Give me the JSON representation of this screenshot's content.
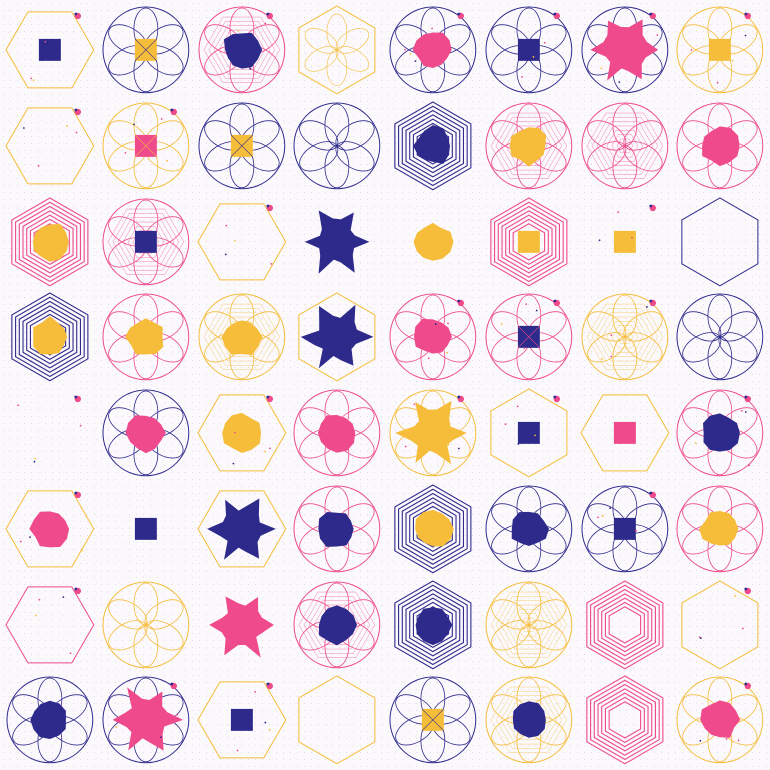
{
  "colors": {
    "navy": "#2e2a8c",
    "pink": "#ee4a8c",
    "yellow": "#f5bd3a",
    "background": "#fbf9fc"
  },
  "tiles": [
    {
      "outline": "hexagon",
      "outline_color": "yellow",
      "center": "square",
      "center_color": "navy",
      "dots": true
    },
    {
      "outline": "flower",
      "outline_color": "navy",
      "center": "square",
      "center_color": "yellow",
      "dots": false
    },
    {
      "outline": "flower-dense",
      "outline_color": "pink",
      "center": "blob",
      "center_color": "navy",
      "dots": true
    },
    {
      "outline": "hexagon-petals",
      "outline_color": "yellow",
      "center": "none",
      "center_color": "",
      "dots": false
    },
    {
      "outline": "flower",
      "outline_color": "navy",
      "center": "blob",
      "center_color": "pink",
      "dots": true
    },
    {
      "outline": "flower",
      "outline_color": "navy",
      "center": "square",
      "center_color": "navy",
      "dots": true
    },
    {
      "outline": "flower",
      "outline_color": "navy",
      "center": "splash",
      "center_color": "pink",
      "dots": true
    },
    {
      "outline": "flower",
      "outline_color": "yellow",
      "center": "square",
      "center_color": "yellow",
      "dots": true
    },
    {
      "outline": "hexagon",
      "outline_color": "yellow",
      "center": "none",
      "center_color": "",
      "dots": true
    },
    {
      "outline": "flower",
      "outline_color": "yellow",
      "center": "square",
      "center_color": "pink",
      "dots": true
    },
    {
      "outline": "flower",
      "outline_color": "navy",
      "center": "square",
      "center_color": "yellow",
      "dots": false
    },
    {
      "outline": "flower",
      "outline_color": "navy",
      "center": "none",
      "center_color": "",
      "dots": false
    },
    {
      "outline": "hexagon-nested",
      "outline_color": "navy",
      "center": "blob",
      "center_color": "navy",
      "dots": false
    },
    {
      "outline": "flower-dense",
      "outline_color": "pink",
      "center": "blob",
      "center_color": "yellow",
      "dots": false
    },
    {
      "outline": "flower-dense",
      "outline_color": "pink",
      "center": "none",
      "center_color": "",
      "dots": false
    },
    {
      "outline": "flower",
      "outline_color": "pink",
      "center": "blob",
      "center_color": "pink",
      "dots": false
    },
    {
      "outline": "hexagon-nested",
      "outline_color": "pink",
      "center": "blob",
      "center_color": "yellow",
      "dots": false
    },
    {
      "outline": "flower-dense",
      "outline_color": "pink",
      "center": "square",
      "center_color": "navy",
      "dots": false
    },
    {
      "outline": "hexagon",
      "outline_color": "yellow",
      "center": "none",
      "center_color": "",
      "dots": true
    },
    {
      "outline": "none",
      "outline_color": "navy",
      "center": "splash",
      "center_color": "navy",
      "dots": false
    },
    {
      "outline": "none",
      "outline_color": "yellow",
      "center": "blob",
      "center_color": "yellow",
      "dots": false
    },
    {
      "outline": "hexagon-nested",
      "outline_color": "pink",
      "center": "square",
      "center_color": "yellow",
      "dots": false
    },
    {
      "outline": "none",
      "outline_color": "yellow",
      "center": "square",
      "center_color": "yellow",
      "dots": true
    },
    {
      "outline": "hexagon",
      "outline_color": "navy",
      "center": "none",
      "center_color": "",
      "dots": false
    },
    {
      "outline": "hexagon-nested",
      "outline_color": "navy",
      "center": "blob",
      "center_color": "yellow",
      "dots": false
    },
    {
      "outline": "flower",
      "outline_color": "pink",
      "center": "blob",
      "center_color": "yellow",
      "dots": false
    },
    {
      "outline": "flower-dense",
      "outline_color": "yellow",
      "center": "blob",
      "center_color": "yellow",
      "dots": false
    },
    {
      "outline": "hexagon",
      "outline_color": "yellow",
      "center": "splash",
      "center_color": "navy",
      "dots": false
    },
    {
      "outline": "flower",
      "outline_color": "pink",
      "center": "blob",
      "center_color": "pink",
      "dots": true
    },
    {
      "outline": "flower",
      "outline_color": "pink",
      "center": "square",
      "center_color": "navy",
      "dots": true
    },
    {
      "outline": "flower-dense",
      "outline_color": "yellow",
      "center": "none",
      "center_color": "",
      "dots": true
    },
    {
      "outline": "flower",
      "outline_color": "navy",
      "center": "none",
      "center_color": "",
      "dots": false
    },
    {
      "outline": "none",
      "outline_color": "yellow",
      "center": "none",
      "center_color": "",
      "dots": true
    },
    {
      "outline": "flower",
      "outline_color": "navy",
      "center": "blob",
      "center_color": "pink",
      "dots": false
    },
    {
      "outline": "hexagon",
      "outline_color": "yellow",
      "center": "blob",
      "center_color": "yellow",
      "dots": true
    },
    {
      "outline": "flower",
      "outline_color": "pink",
      "center": "blob",
      "center_color": "pink",
      "dots": false
    },
    {
      "outline": "flower",
      "outline_color": "yellow",
      "center": "splash",
      "center_color": "yellow",
      "dots": true
    },
    {
      "outline": "hexagon",
      "outline_color": "yellow",
      "center": "square",
      "center_color": "navy",
      "dots": true
    },
    {
      "outline": "hexagon",
      "outline_color": "yellow",
      "center": "square",
      "center_color": "pink",
      "dots": false
    },
    {
      "outline": "flower",
      "outline_color": "pink",
      "center": "blob",
      "center_color": "navy",
      "dots": true
    },
    {
      "outline": "hexagon",
      "outline_color": "yellow",
      "center": "blob",
      "center_color": "pink",
      "dots": true
    },
    {
      "outline": "none",
      "outline_color": "navy",
      "center": "square",
      "center_color": "navy",
      "dots": false
    },
    {
      "outline": "hexagon",
      "outline_color": "yellow",
      "center": "splash",
      "center_color": "navy",
      "dots": false
    },
    {
      "outline": "flower",
      "outline_color": "pink",
      "center": "blob",
      "center_color": "navy",
      "dots": false
    },
    {
      "outline": "hexagon-dense",
      "outline_color": "navy",
      "center": "blob",
      "center_color": "yellow",
      "dots": false
    },
    {
      "outline": "flower",
      "outline_color": "navy",
      "center": "blob",
      "center_color": "navy",
      "dots": false
    },
    {
      "outline": "flower",
      "outline_color": "navy",
      "center": "square",
      "center_color": "navy",
      "dots": true
    },
    {
      "outline": "flower",
      "outline_color": "pink",
      "center": "blob",
      "center_color": "yellow",
      "dots": false
    },
    {
      "outline": "hexagon",
      "outline_color": "pink",
      "center": "none",
      "center_color": "",
      "dots": true
    },
    {
      "outline": "flower",
      "outline_color": "yellow",
      "center": "none",
      "center_color": "",
      "dots": false
    },
    {
      "outline": "none",
      "outline_color": "pink",
      "center": "splash",
      "center_color": "pink",
      "dots": false
    },
    {
      "outline": "flower-dense",
      "outline_color": "pink",
      "center": "blob",
      "center_color": "navy",
      "dots": false
    },
    {
      "outline": "hexagon-nested",
      "outline_color": "navy",
      "center": "blob",
      "center_color": "navy",
      "dots": false
    },
    {
      "outline": "flower-dense",
      "outline_color": "yellow",
      "center": "none",
      "center_color": "",
      "dots": false
    },
    {
      "outline": "hexagon-nested",
      "outline_color": "pink",
      "center": "none",
      "center_color": "",
      "dots": false
    },
    {
      "outline": "hexagon",
      "outline_color": "yellow",
      "center": "none",
      "center_color": "",
      "dots": true
    },
    {
      "outline": "flower",
      "outline_color": "navy",
      "center": "blob",
      "center_color": "navy",
      "dots": false
    },
    {
      "outline": "flower",
      "outline_color": "navy",
      "center": "splash",
      "center_color": "pink",
      "dots": true
    },
    {
      "outline": "hexagon",
      "outline_color": "yellow",
      "center": "square",
      "center_color": "navy",
      "dots": true
    },
    {
      "outline": "hexagon",
      "outline_color": "yellow",
      "center": "none",
      "center_color": "",
      "dots": false
    },
    {
      "outline": "flower",
      "outline_color": "navy",
      "center": "square",
      "center_color": "yellow",
      "dots": false
    },
    {
      "outline": "flower-dense",
      "outline_color": "yellow",
      "center": "blob",
      "center_color": "navy",
      "dots": false
    },
    {
      "outline": "hexagon-nested",
      "outline_color": "pink",
      "center": "none",
      "center_color": "",
      "dots": false
    },
    {
      "outline": "flower",
      "outline_color": "yellow",
      "center": "blob",
      "center_color": "pink",
      "dots": true
    }
  ]
}
